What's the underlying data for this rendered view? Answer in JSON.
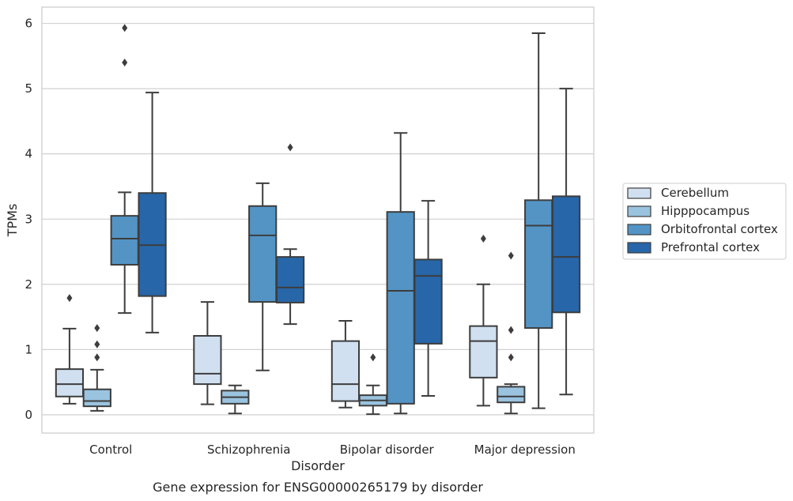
{
  "chart_data": {
    "type": "box",
    "title": "",
    "caption": "Gene expression for ENSG00000265179 by disorder",
    "xlabel": "Disorder",
    "ylabel": "TPMs",
    "ylim": [
      -0.28,
      6.25
    ],
    "yticks": [
      0,
      1,
      2,
      3,
      4,
      5,
      6
    ],
    "grid": true,
    "legend_position": "right",
    "categories": [
      "Control",
      "Schizophrenia",
      "Bipolar disorder",
      "Major depression"
    ],
    "series": [
      {
        "name": "Cerebellum",
        "color": "#d0e0f1",
        "boxes": [
          {
            "whislo": 0.17,
            "q1": 0.28,
            "med": 0.47,
            "q3": 0.7,
            "whishi": 1.32,
            "fliers": [
              1.79
            ]
          },
          {
            "whislo": 0.16,
            "q1": 0.47,
            "med": 0.63,
            "q3": 1.21,
            "whishi": 1.73,
            "fliers": []
          },
          {
            "whislo": 0.11,
            "q1": 0.21,
            "med": 0.47,
            "q3": 1.13,
            "whishi": 1.44,
            "fliers": []
          },
          {
            "whislo": 0.14,
            "q1": 0.57,
            "med": 1.13,
            "q3": 1.36,
            "whishi": 2.0,
            "fliers": [
              2.7
            ]
          }
        ]
      },
      {
        "name": "Hipppocampus",
        "color": "#9ac3df",
        "boxes": [
          {
            "whislo": 0.06,
            "q1": 0.13,
            "med": 0.21,
            "q3": 0.39,
            "whishi": 0.69,
            "fliers": [
              0.88,
              1.08,
              1.33
            ]
          },
          {
            "whislo": 0.02,
            "q1": 0.17,
            "med": 0.27,
            "q3": 0.37,
            "whishi": 0.45,
            "fliers": []
          },
          {
            "whislo": 0.01,
            "q1": 0.14,
            "med": 0.22,
            "q3": 0.3,
            "whishi": 0.45,
            "fliers": [
              0.88
            ]
          },
          {
            "whislo": 0.02,
            "q1": 0.19,
            "med": 0.28,
            "q3": 0.43,
            "whishi": 0.47,
            "fliers": [
              0.88,
              1.3,
              2.44
            ]
          }
        ]
      },
      {
        "name": "Orbitofrontal cortex",
        "color": "#5394c5",
        "boxes": [
          {
            "whislo": 1.56,
            "q1": 2.3,
            "med": 2.7,
            "q3": 3.05,
            "whishi": 3.41,
            "fliers": [
              5.4,
              5.93
            ]
          },
          {
            "whislo": 0.68,
            "q1": 1.73,
            "med": 2.75,
            "q3": 3.2,
            "whishi": 3.55,
            "fliers": []
          },
          {
            "whislo": 0.02,
            "q1": 0.17,
            "med": 1.9,
            "q3": 3.11,
            "whishi": 4.32,
            "fliers": []
          },
          {
            "whislo": 0.1,
            "q1": 1.33,
            "med": 2.9,
            "q3": 3.29,
            "whishi": 5.85,
            "fliers": []
          }
        ]
      },
      {
        "name": "Prefrontal cortex",
        "color": "#2766a9",
        "boxes": [
          {
            "whislo": 1.26,
            "q1": 1.82,
            "med": 2.6,
            "q3": 3.4,
            "whishi": 4.94,
            "fliers": []
          },
          {
            "whislo": 1.39,
            "q1": 1.72,
            "med": 1.95,
            "q3": 2.42,
            "whishi": 2.54,
            "fliers": [
              4.1
            ]
          },
          {
            "whislo": 0.29,
            "q1": 1.09,
            "med": 2.13,
            "q3": 2.38,
            "whishi": 3.28,
            "fliers": []
          },
          {
            "whislo": 0.31,
            "q1": 1.57,
            "med": 2.42,
            "q3": 3.35,
            "whishi": 5.0,
            "fliers": []
          }
        ]
      }
    ]
  }
}
